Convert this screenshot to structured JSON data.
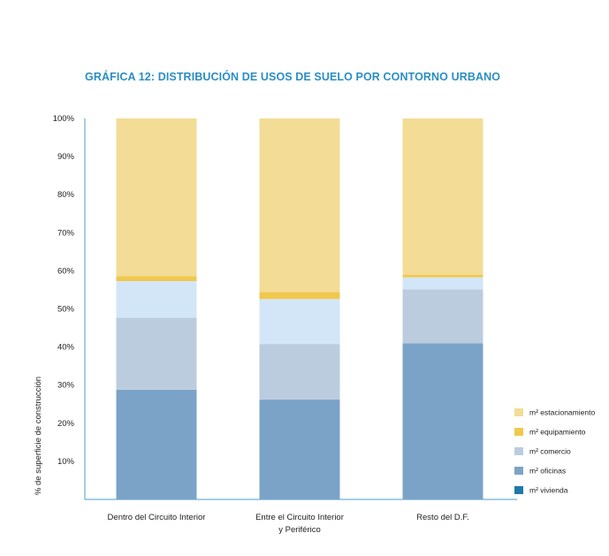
{
  "chart_data": {
    "type": "bar",
    "stacked": true,
    "title": "GRÁFICA 12:  DISTRIBUCIÓN DE USOS DE SUELO POR CONTORNO URBANO",
    "ylabel": "% de superficie de construcción",
    "xlabel": "",
    "ylim": [
      0,
      100
    ],
    "yticks": [
      "10%",
      "20%",
      "30%",
      "40%",
      "50%",
      "60%",
      "70%",
      "80%",
      "90%",
      "100%"
    ],
    "categories": [
      [
        "Dentro del Circuito Interior"
      ],
      [
        "Entre el Circuito Interior",
        "y Periférico"
      ],
      [
        "Resto del D.F."
      ]
    ],
    "segments": [
      {
        "color": "#7ba3c7",
        "values": [
          28.8,
          26.2,
          41.0
        ]
      },
      {
        "color": "#bcccdf",
        "values": [
          18.9,
          14.6,
          14.1
        ]
      },
      {
        "color": "#d3e6f8",
        "values": [
          9.6,
          11.8,
          3.2
        ]
      },
      {
        "color": "#f0c84e",
        "values": [
          1.3,
          1.8,
          0.7
        ]
      },
      {
        "color": "#f3dc96",
        "values": [
          41.4,
          45.6,
          41.0
        ]
      }
    ],
    "legend": [
      {
        "label": "m² estacionamiento",
        "color": "#f3dc96"
      },
      {
        "label": "m² equipamiento",
        "color": "#f0c84e"
      },
      {
        "label": "m² comercio",
        "color": "#bcccdf"
      },
      {
        "label": "m² oficinas",
        "color": "#7ba3c7"
      },
      {
        "label": "m² vivienda",
        "color": "#1f7aa8"
      }
    ],
    "legend_position": "right",
    "grid": false
  }
}
